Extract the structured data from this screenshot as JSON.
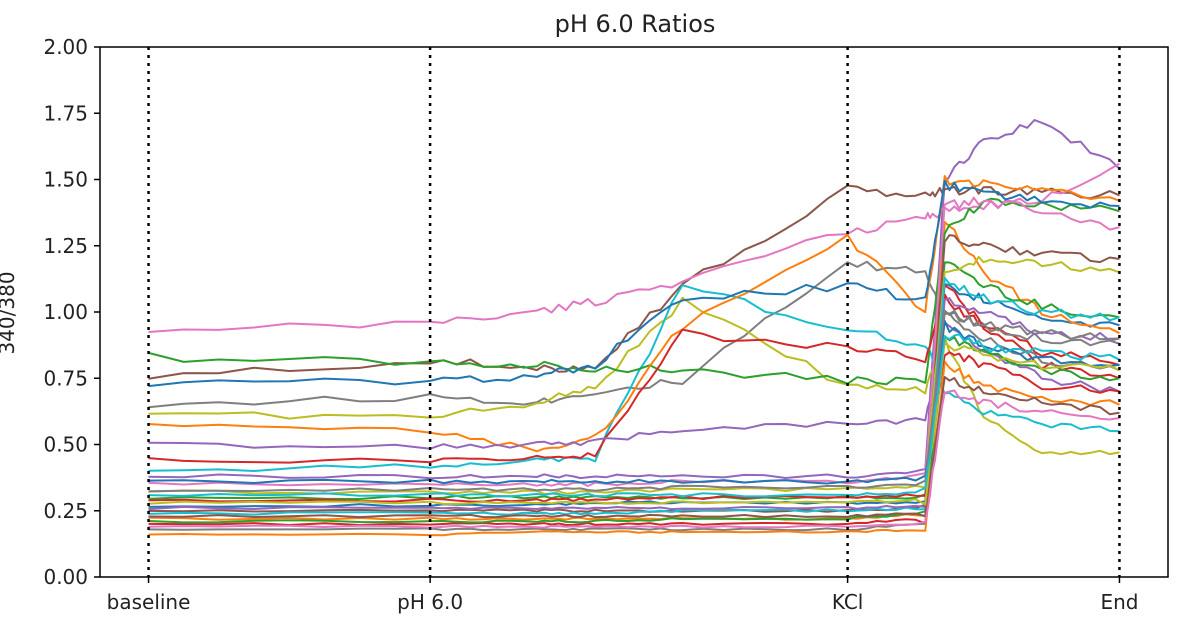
{
  "chart_data": {
    "type": "line",
    "title": "pH 6.0 Ratios",
    "xlabel": "",
    "ylabel": "340/380",
    "ylim": [
      0,
      2
    ],
    "yticks": [
      "0.00",
      "0.25",
      "0.50",
      "0.75",
      "1.00",
      "1.25",
      "1.50",
      "1.75",
      "2.00"
    ],
    "xlim": [
      -5,
      105
    ],
    "event_markers": [
      {
        "label": "baseline",
        "x": 0
      },
      {
        "label": "pH 6.0",
        "x": 29
      },
      {
        "label": "KCl",
        "x": 72
      },
      {
        "label": "End",
        "x": 100
      }
    ],
    "grid": false,
    "legend": "none",
    "series_anchor_x": [
      0,
      29,
      40,
      46,
      55,
      72,
      80,
      82,
      86,
      92,
      100
    ],
    "series": [
      {
        "color": "#1f77b4",
        "values": [
          0.27,
          0.27,
          0.27,
          0.28,
          0.28,
          0.28,
          0.28,
          1.1,
          1.05,
          0.98,
          0.95
        ]
      },
      {
        "color": "#ff7f0e",
        "values": [
          0.22,
          0.22,
          0.22,
          0.22,
          0.22,
          0.22,
          0.24,
          1.35,
          1.15,
          1.0,
          0.92
        ]
      },
      {
        "color": "#2ca02c",
        "values": [
          0.3,
          0.3,
          0.3,
          0.3,
          0.3,
          0.3,
          0.3,
          1.2,
          1.1,
          1.02,
          0.98
        ]
      },
      {
        "color": "#d62728",
        "values": [
          0.2,
          0.2,
          0.2,
          0.2,
          0.2,
          0.2,
          0.22,
          1.05,
          0.95,
          0.85,
          0.8
        ]
      },
      {
        "color": "#9467bd",
        "values": [
          0.38,
          0.38,
          0.38,
          0.38,
          0.38,
          0.38,
          0.4,
          1.5,
          1.65,
          1.72,
          1.54
        ]
      },
      {
        "color": "#8c564b",
        "values": [
          0.75,
          0.82,
          0.78,
          0.8,
          1.1,
          1.46,
          1.44,
          1.46,
          1.46,
          1.45,
          1.44
        ]
      },
      {
        "color": "#e377c2",
        "values": [
          0.92,
          0.96,
          1.0,
          1.04,
          1.12,
          1.3,
          1.36,
          1.38,
          1.4,
          1.42,
          1.56
        ]
      },
      {
        "color": "#7f7f7f",
        "values": [
          0.65,
          0.68,
          0.66,
          0.7,
          0.74,
          1.18,
          1.15,
          1.0,
          0.95,
          0.9,
          0.88
        ]
      },
      {
        "color": "#bcbd22",
        "values": [
          0.62,
          0.6,
          0.66,
          0.72,
          1.04,
          0.72,
          0.7,
          0.9,
          0.6,
          0.47,
          0.47
        ]
      },
      {
        "color": "#17becf",
        "values": [
          0.4,
          0.42,
          0.44,
          0.45,
          1.1,
          0.93,
          0.88,
          0.7,
          0.62,
          0.58,
          0.55
        ]
      },
      {
        "color": "#2ca02c",
        "values": [
          0.83,
          0.81,
          0.8,
          0.79,
          0.78,
          0.74,
          0.74,
          1.3,
          1.42,
          1.4,
          1.38
        ]
      },
      {
        "color": "#ff7f0e",
        "values": [
          0.57,
          0.55,
          0.48,
          0.52,
          0.95,
          1.28,
          1.0,
          1.5,
          1.48,
          1.46,
          1.42
        ]
      },
      {
        "color": "#1f77b4",
        "values": [
          0.73,
          0.74,
          0.76,
          0.8,
          1.05,
          1.1,
          1.04,
          1.48,
          1.45,
          1.42,
          1.4
        ]
      },
      {
        "color": "#d62728",
        "values": [
          0.44,
          0.44,
          0.45,
          0.46,
          0.92,
          0.86,
          0.82,
          1.1,
          0.95,
          0.8,
          0.75
        ]
      },
      {
        "color": "#9467bd",
        "values": [
          0.5,
          0.49,
          0.5,
          0.51,
          0.56,
          0.58,
          0.59,
          0.95,
          0.85,
          0.75,
          0.7
        ]
      },
      {
        "color": "#8c564b",
        "values": [
          0.25,
          0.25,
          0.25,
          0.25,
          0.25,
          0.25,
          0.26,
          1.28,
          1.25,
          1.22,
          1.2
        ]
      },
      {
        "color": "#e377c2",
        "values": [
          0.35,
          0.35,
          0.35,
          0.35,
          0.36,
          0.36,
          0.38,
          1.4,
          1.42,
          1.38,
          1.32
        ]
      },
      {
        "color": "#7f7f7f",
        "values": [
          0.18,
          0.18,
          0.18,
          0.18,
          0.18,
          0.18,
          0.2,
          1.0,
          0.9,
          0.82,
          0.78
        ]
      },
      {
        "color": "#bcbd22",
        "values": [
          0.32,
          0.32,
          0.32,
          0.32,
          0.33,
          0.33,
          0.34,
          1.15,
          1.2,
          1.18,
          1.15
        ]
      },
      {
        "color": "#17becf",
        "values": [
          0.24,
          0.24,
          0.24,
          0.24,
          0.25,
          0.25,
          0.26,
          1.12,
          1.05,
          1.0,
          0.98
        ]
      },
      {
        "color": "#1f77b4",
        "values": [
          0.36,
          0.36,
          0.36,
          0.36,
          0.36,
          0.36,
          0.37,
          0.95,
          0.88,
          0.82,
          0.8
        ]
      },
      {
        "color": "#ff7f0e",
        "values": [
          0.16,
          0.16,
          0.17,
          0.17,
          0.17,
          0.17,
          0.18,
          0.8,
          0.72,
          0.68,
          0.65
        ]
      },
      {
        "color": "#2ca02c",
        "values": [
          0.21,
          0.21,
          0.21,
          0.21,
          0.22,
          0.22,
          0.24,
          0.9,
          0.85,
          0.78,
          0.75
        ]
      },
      {
        "color": "#d62728",
        "values": [
          0.29,
          0.29,
          0.29,
          0.29,
          0.3,
          0.3,
          0.31,
          0.85,
          0.8,
          0.72,
          0.7
        ]
      },
      {
        "color": "#9467bd",
        "values": [
          0.26,
          0.26,
          0.26,
          0.26,
          0.26,
          0.26,
          0.27,
          1.05,
          1.0,
          0.92,
          0.9
        ]
      },
      {
        "color": "#8c564b",
        "values": [
          0.23,
          0.23,
          0.23,
          0.23,
          0.23,
          0.23,
          0.24,
          0.75,
          0.7,
          0.66,
          0.62
        ]
      },
      {
        "color": "#e377c2",
        "values": [
          0.19,
          0.19,
          0.19,
          0.19,
          0.19,
          0.19,
          0.2,
          0.7,
          0.66,
          0.62,
          0.6
        ]
      },
      {
        "color": "#7f7f7f",
        "values": [
          0.33,
          0.33,
          0.33,
          0.33,
          0.34,
          0.34,
          0.35,
          1.0,
          0.95,
          0.92,
          0.9
        ]
      },
      {
        "color": "#bcbd22",
        "values": [
          0.28,
          0.28,
          0.28,
          0.28,
          0.28,
          0.28,
          0.29,
          0.88,
          0.84,
          0.8,
          0.78
        ]
      },
      {
        "color": "#17becf",
        "values": [
          0.31,
          0.31,
          0.31,
          0.31,
          0.31,
          0.31,
          0.32,
          0.92,
          0.87,
          0.85,
          0.82
        ]
      }
    ]
  }
}
